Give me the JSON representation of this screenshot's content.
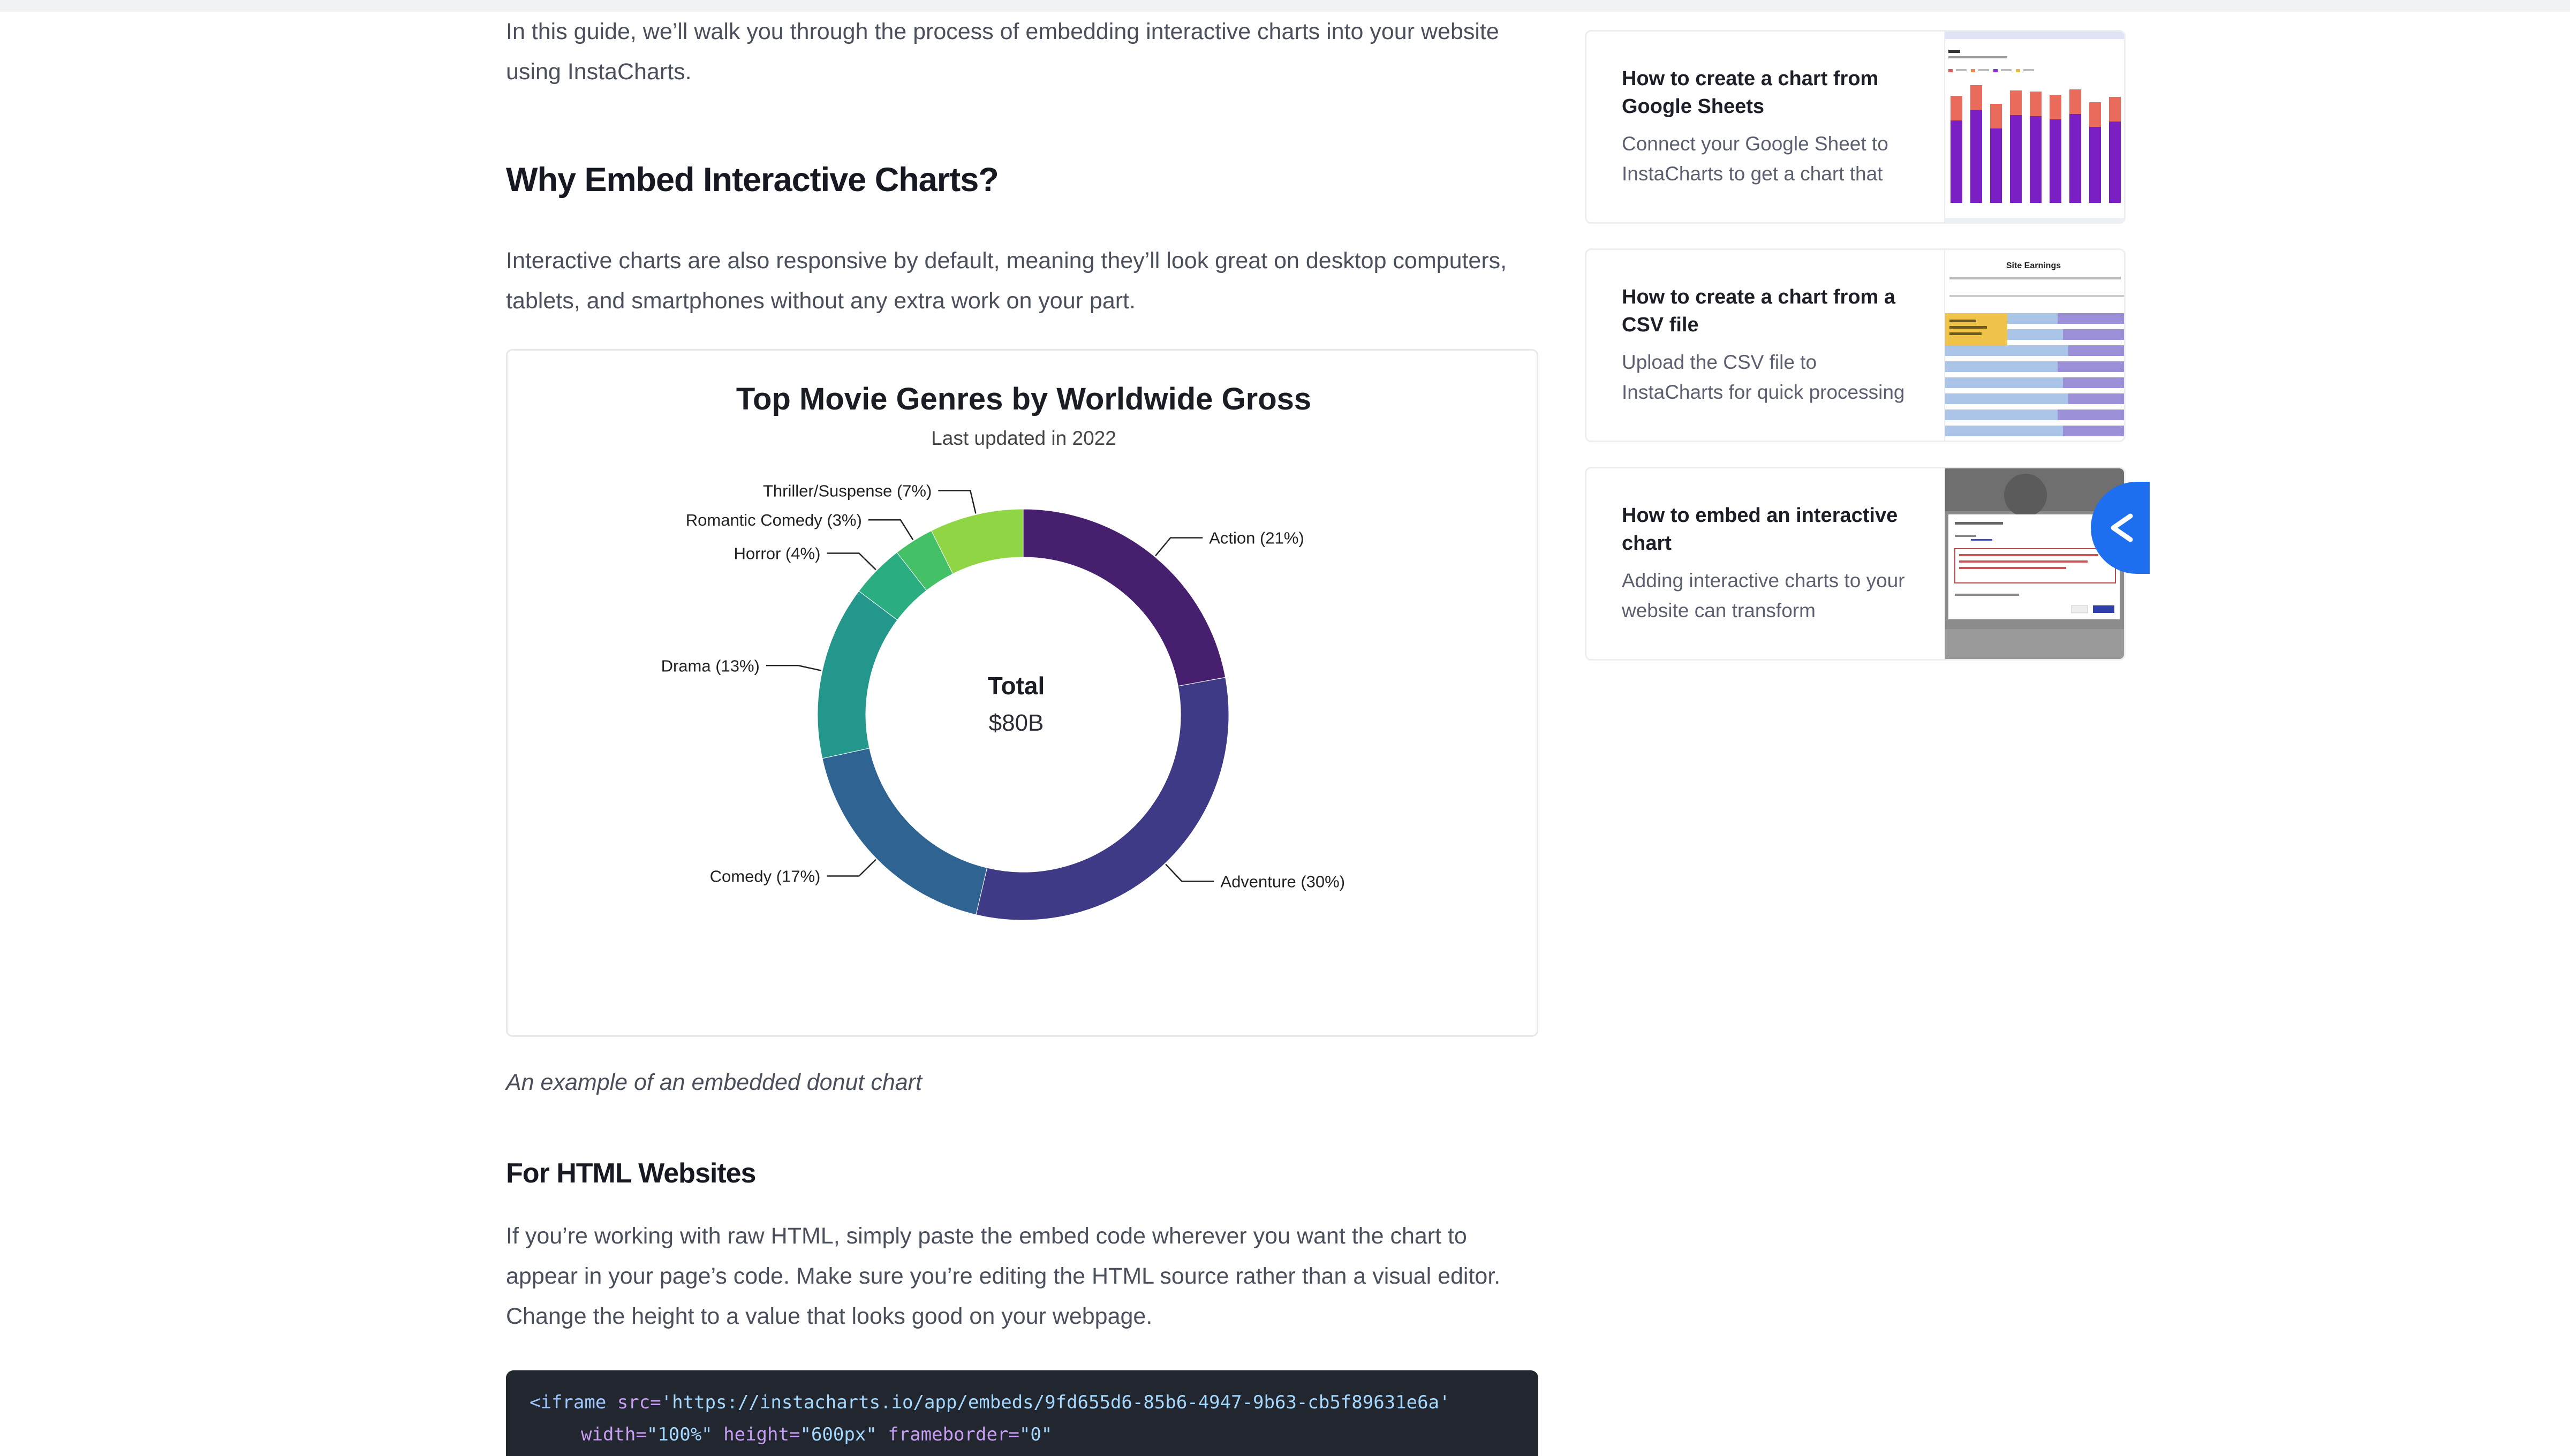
{
  "article": {
    "intro": "In this guide, we’ll walk you through the process of embedding interactive charts into your website using InstaCharts.",
    "h_why": "Why Embed Interactive Charts?",
    "p_responsive": "Interactive charts are also responsive by default, meaning they’ll look great on desktop computers, tablets, and smartphones without any extra work on your part.",
    "caption": "An example of an embedded donut chart",
    "h_html": "For HTML Websites",
    "p_html": "If you’re working with raw HTML, simply paste the embed code wherever you want the chart to appear in your page’s code. Make sure you’re editing the HTML source rather than a visual editor. Change the height to a value that looks good on your webpage.",
    "code": {
      "line1": {
        "tag": "<iframe",
        "attr_src": "src=",
        "src": "'https://instacharts.io/app/embeds/9fd655d6-85b6-4947-9b63-cb5f89631e6a'"
      },
      "line2": {
        "attr_width": "width=",
        "width": "\"100%\"",
        "attr_height": "height=",
        "height": "\"600px\"",
        "attr_frameborder": "frameborder=",
        "frameborder": "\"0\""
      }
    }
  },
  "chart_data": {
    "type": "pie",
    "title": "Top Movie Genres by Worldwide Gross",
    "subtitle": "Last updated in 2022",
    "center_label": "Total",
    "center_value": "$80B",
    "categories": [
      "Action",
      "Adventure",
      "Comedy",
      "Drama",
      "Horror",
      "Romantic Comedy",
      "Thriller/Suspense"
    ],
    "values": [
      21,
      30,
      17,
      13,
      4,
      3,
      7
    ],
    "labels": [
      "Action (21%)",
      "Adventure (30%)",
      "Comedy (17%)",
      "Drama (13%)",
      "Horror (4%)",
      "Romantic Comedy (3%)",
      "Thriller/Suspense (7%)"
    ],
    "colors": [
      "#46206f",
      "#3f3a86",
      "#2f6391",
      "#24978c",
      "#2aad80",
      "#44c167",
      "#8fd544"
    ]
  },
  "sidebar": {
    "cards": [
      {
        "title": "How to create a chart from Google Sheets",
        "desc": "Connect your Google Sheet to InstaCharts to get a chart that"
      },
      {
        "title": "How to create a chart from a CSV file",
        "desc": "Upload the CSV file to InstaCharts for quick processing",
        "thumb_title": "Site Earnings"
      },
      {
        "title": "How to embed an interactive chart",
        "desc": "Adding interactive charts to your website can transform"
      }
    ]
  },
  "icons": {
    "share": "share-icon"
  }
}
